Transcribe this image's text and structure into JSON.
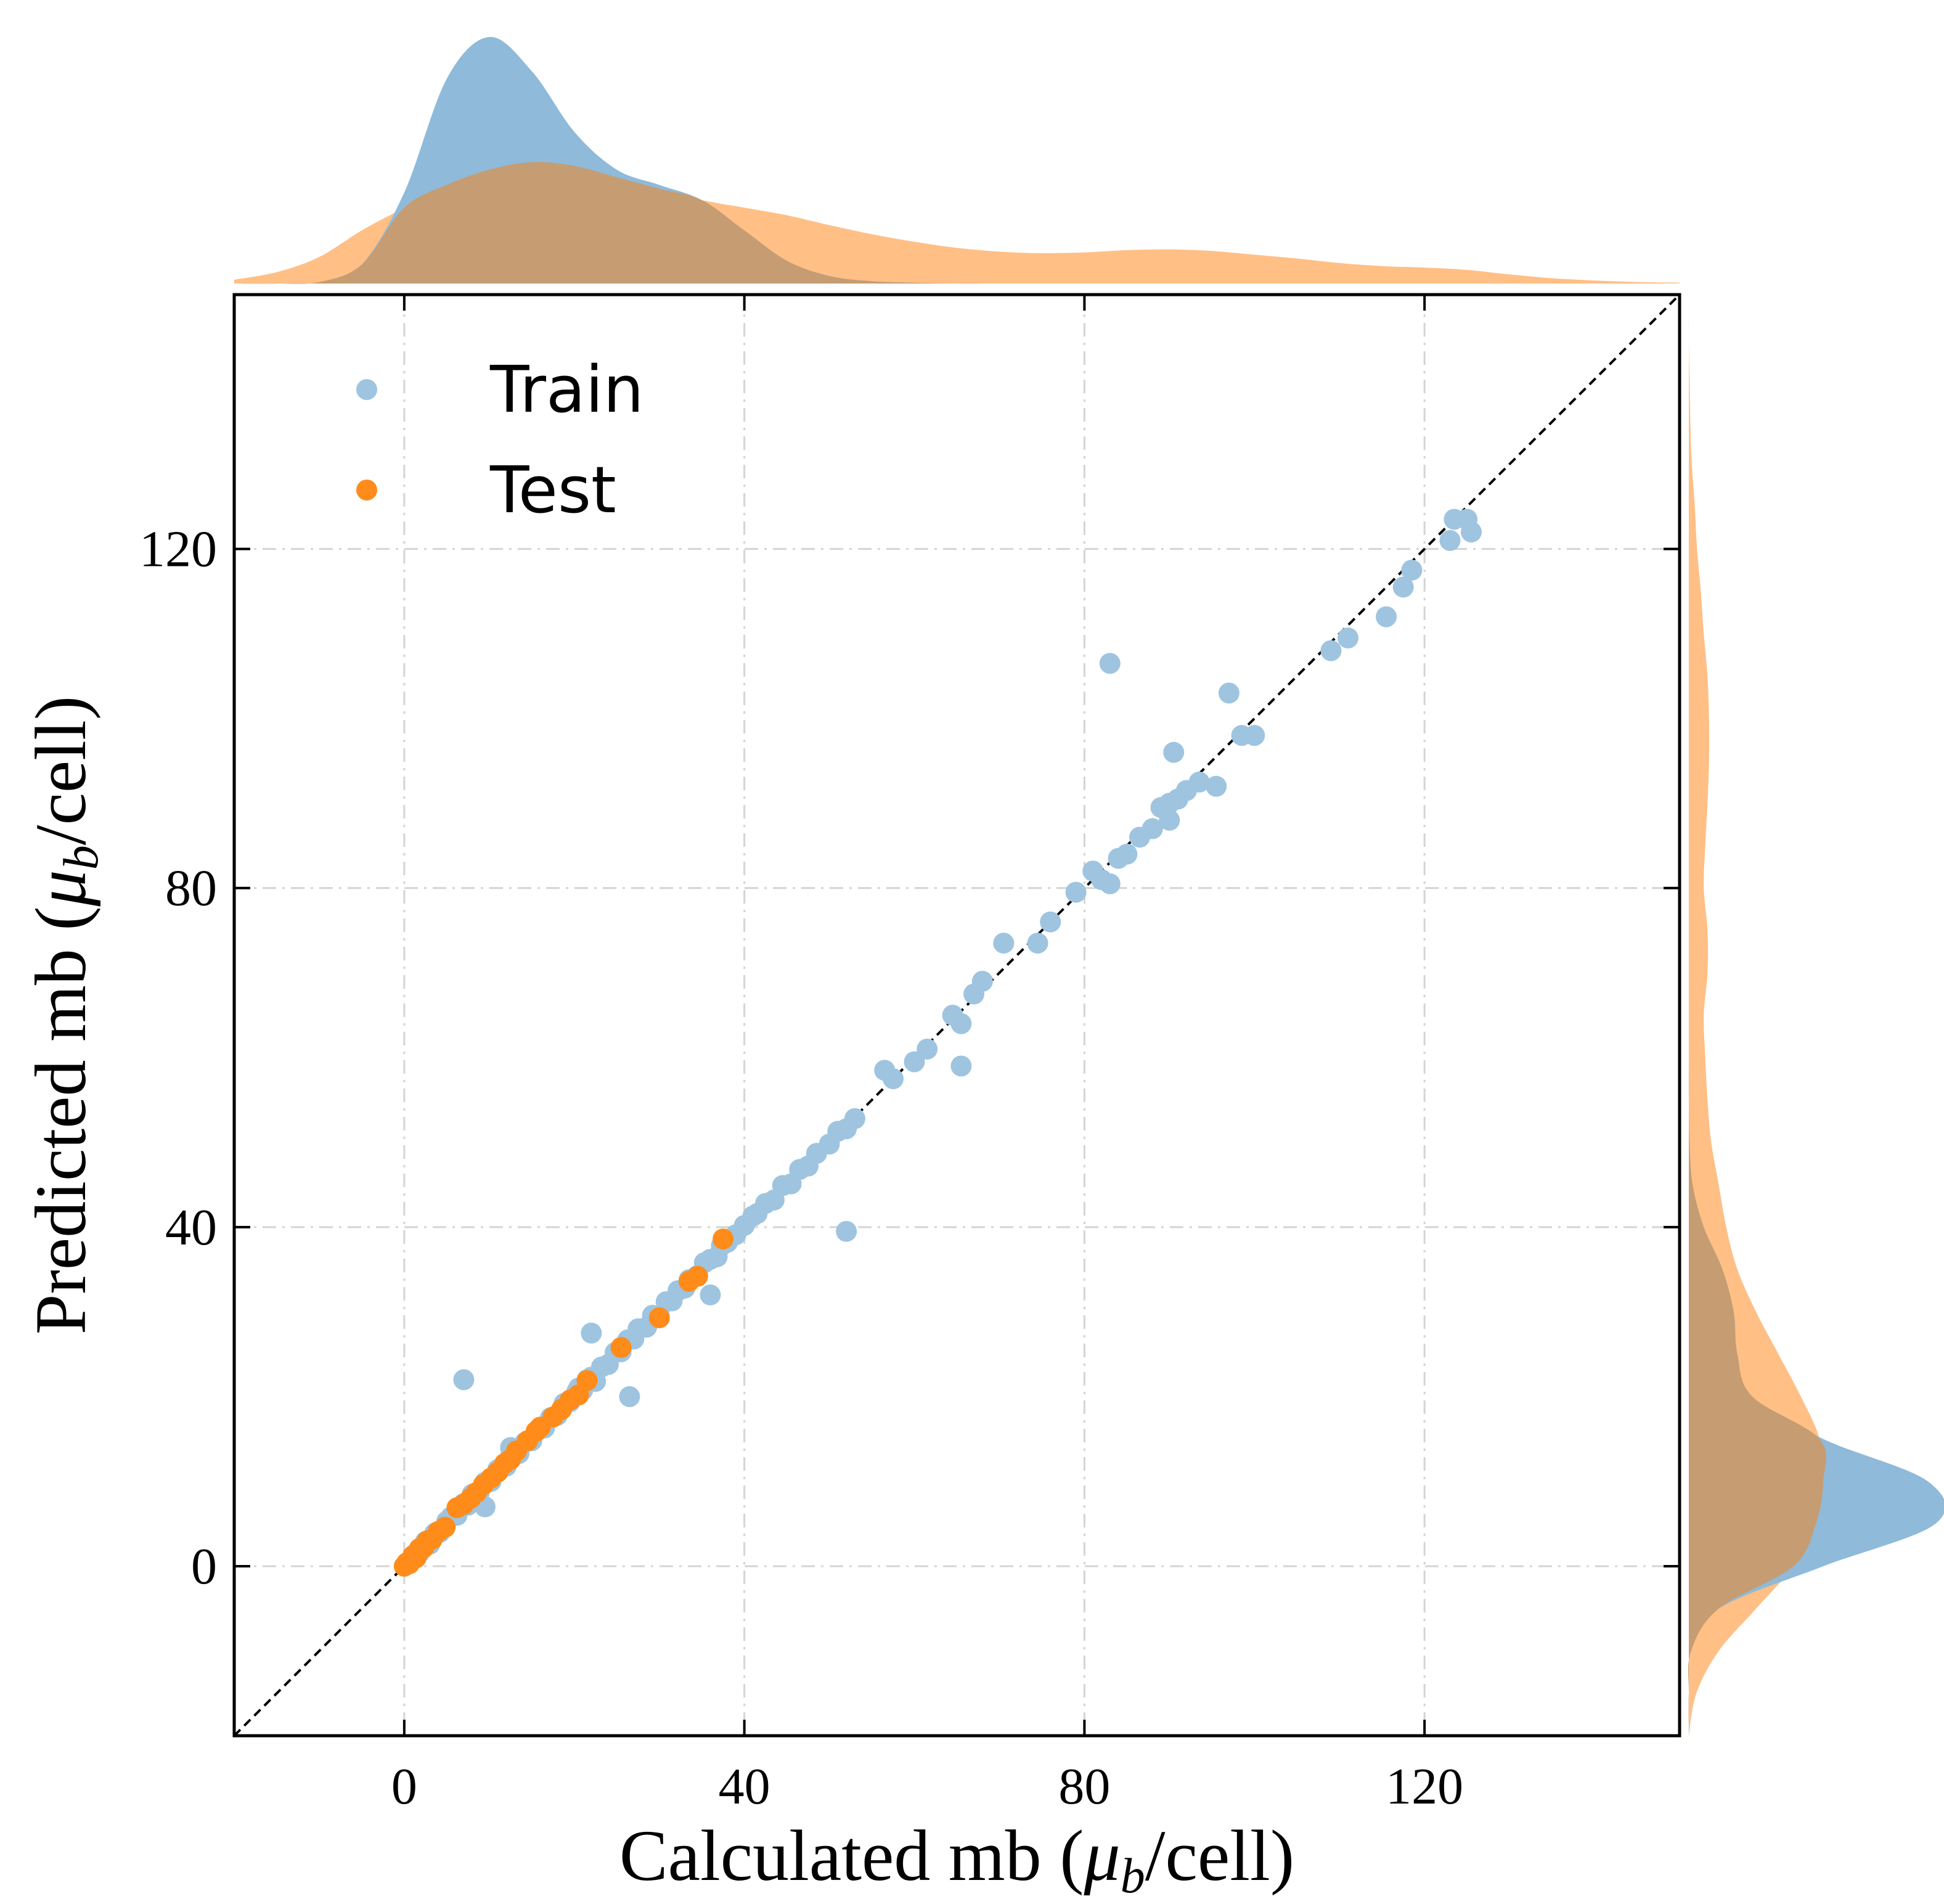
{
  "chart_data": {
    "type": "scatter",
    "xlabel": "Calculated mb (μb/cell)",
    "ylabel": "Predicted mb (μb/cell)",
    "xlabel_parts": {
      "prefix": "Calculated mb (",
      "mu": "μ",
      "sub": "b",
      "suffix": "/cell)"
    },
    "ylabel_parts": {
      "prefix": "Predicted mb (",
      "mu": "μ",
      "sub": "b",
      "suffix": "/cell)"
    },
    "xlim": [
      -20,
      150
    ],
    "ylim": [
      -20,
      150
    ],
    "xticks": [
      0,
      40,
      80,
      120
    ],
    "yticks": [
      0,
      40,
      80,
      120
    ],
    "xtick_labels": [
      "0",
      "40",
      "80",
      "120"
    ],
    "ytick_labels": [
      "0",
      "40",
      "80",
      "120"
    ],
    "grid": true,
    "legend_position": "top-left",
    "diagonal_reference_line": true,
    "marginal_distributions": "kde",
    "colors": {
      "train": "#9ec4e0",
      "test": "#ff8c1a",
      "train_kde": "#8fbad9",
      "test_kde": "#ffbf85",
      "overlap_kde": "#c69c72"
    },
    "series": [
      {
        "name": "Train",
        "x": [
          0.3,
          0.8,
          1.2,
          1.8,
          2.5,
          3.0,
          3.6,
          4.2,
          5.0,
          5.5,
          6.2,
          7.0,
          7.5,
          8.0,
          8.8,
          9.5,
          10.2,
          11.0,
          12.0,
          12.5,
          13.5,
          14.2,
          15.0,
          15.8,
          16.5,
          17.2,
          18.0,
          18.8,
          19.5,
          20.3,
          21.0,
          21.5,
          22.0,
          22.5,
          23.2,
          24.0,
          24.8,
          25.5,
          26.3,
          27.0,
          27.5,
          28.5,
          29.2,
          30.0,
          30.8,
          31.5,
          32.2,
          33.0,
          33.5,
          34.5,
          35.3,
          36.0,
          36.8,
          37.3,
          38.0,
          39.0,
          40.0,
          41.0,
          41.5,
          42.5,
          43.5,
          44.5,
          45.5,
          46.5,
          47.5,
          48.5,
          50.0,
          51.0,
          52.0,
          53.0,
          52.0,
          7.0,
          9.5,
          22.0,
          26.5,
          56.5,
          57.5,
          60.0,
          61.5,
          64.5,
          65.5,
          65.5,
          67.0,
          68.0,
          70.5,
          74.5,
          76.0,
          79.0,
          81.0,
          82.0,
          83.0,
          84.0,
          85.0,
          86.5,
          88.0,
          89.0,
          90.0,
          90.0,
          91.0,
          92.0,
          93.5,
          95.5,
          97.0,
          98.5,
          100.0,
          109.0,
          111.0,
          115.5,
          117.5,
          118.5,
          123.0,
          123.5,
          125.0,
          125.5,
          83.0,
          90.5,
          12.5,
          20.5,
          36.0
        ],
        "y": [
          0.2,
          0.7,
          1.4,
          1.6,
          2.9,
          2.6,
          3.9,
          4.0,
          5.3,
          5.8,
          6.0,
          7.4,
          7.2,
          8.5,
          8.6,
          9.9,
          10.0,
          11.4,
          11.8,
          13.0,
          13.3,
          14.6,
          14.8,
          16.2,
          16.3,
          17.5,
          17.8,
          19.2,
          19.4,
          20.6,
          20.8,
          22.0,
          22.3,
          21.8,
          23.5,
          23.8,
          25.2,
          25.3,
          26.7,
          26.8,
          28.0,
          28.2,
          29.6,
          29.5,
          31.2,
          31.3,
          32.5,
          32.8,
          33.8,
          34.3,
          35.8,
          36.2,
          36.5,
          37.8,
          38.2,
          39.1,
          40.2,
          41.3,
          41.6,
          42.8,
          43.2,
          44.9,
          45.1,
          46.8,
          47.2,
          48.7,
          49.8,
          51.3,
          51.6,
          52.8,
          39.5,
          22.0,
          7.0,
          27.5,
          20.0,
          58.5,
          57.5,
          59.5,
          61.0,
          65.0,
          64.0,
          59.0,
          67.5,
          69.0,
          73.5,
          73.5,
          76.0,
          79.5,
          82.0,
          81.0,
          80.5,
          83.5,
          84.0,
          86.0,
          87.0,
          89.5,
          88.0,
          90.0,
          90.5,
          91.5,
          92.5,
          92.0,
          103.0,
          98.0,
          98.0,
          108.0,
          109.5,
          112.0,
          115.5,
          117.5,
          121.0,
          123.5,
          123.5,
          122.0,
          106.5,
          96.0,
          14.0,
          21.0,
          32.0
        ]
      },
      {
        "name": "Test",
        "x": [
          0.0,
          0.3,
          0.6,
          1.0,
          1.4,
          1.8,
          2.3,
          2.7,
          3.3,
          4.0,
          4.8,
          6.2,
          7.0,
          7.8,
          8.5,
          9.3,
          10.2,
          11.0,
          11.8,
          12.5,
          13.2,
          14.5,
          15.5,
          16.0,
          17.5,
          18.5,
          19.5,
          20.5,
          21.5,
          25.5,
          30.0,
          33.5,
          34.5,
          37.5
        ],
        "y": [
          0.0,
          0.4,
          0.3,
          1.2,
          1.0,
          2.1,
          2.2,
          3.0,
          3.2,
          4.1,
          4.6,
          6.9,
          7.3,
          8.0,
          8.7,
          9.6,
          10.4,
          11.1,
          12.1,
          12.6,
          13.6,
          14.8,
          15.9,
          16.4,
          17.6,
          18.5,
          19.6,
          20.2,
          21.9,
          25.8,
          29.3,
          33.6,
          34.2,
          38.6
        ]
      }
    ],
    "marginal_x": {
      "grid": [
        -20,
        -15,
        -10,
        -5,
        0,
        5,
        10,
        15,
        20,
        25,
        30,
        35,
        40,
        45,
        50,
        55,
        60,
        65,
        70,
        75,
        80,
        85,
        90,
        95,
        100,
        105,
        110,
        115,
        120,
        125,
        130,
        135,
        140,
        145,
        150
      ],
      "train_density": [
        0.0,
        0.0,
        0.002,
        0.025,
        0.12,
        0.27,
        0.325,
        0.28,
        0.2,
        0.15,
        0.13,
        0.11,
        0.07,
        0.03,
        0.01,
        0.003,
        0.001,
        0.0,
        0.0,
        0.0,
        0.0,
        0.0,
        0.0,
        0.0,
        0.0,
        0.0,
        0.0,
        0.0,
        0.0,
        0.0,
        0.0,
        0.0,
        0.0,
        0.0,
        0.0
      ],
      "test_density": [
        0.005,
        0.015,
        0.035,
        0.07,
        0.1,
        0.13,
        0.15,
        0.16,
        0.155,
        0.14,
        0.125,
        0.11,
        0.1,
        0.09,
        0.077,
        0.065,
        0.055,
        0.047,
        0.042,
        0.04,
        0.041,
        0.044,
        0.045,
        0.043,
        0.038,
        0.033,
        0.027,
        0.023,
        0.021,
        0.018,
        0.012,
        0.007,
        0.004,
        0.002,
        0.001
      ]
    },
    "marginal_y": {
      "grid": [
        -20,
        -15,
        -10,
        -5,
        0,
        5,
        10,
        15,
        20,
        25,
        30,
        35,
        40,
        45,
        50,
        55,
        60,
        65,
        70,
        75,
        80,
        85,
        90,
        95,
        100,
        105,
        110,
        115,
        120,
        125,
        130,
        135,
        140,
        145,
        150
      ],
      "train_density": [
        0.0,
        0.0,
        0.003,
        0.04,
        0.18,
        0.33,
        0.32,
        0.18,
        0.085,
        0.065,
        0.06,
        0.045,
        0.02,
        0.005,
        0.001,
        0.0,
        0.0,
        0.0,
        0.0,
        0.0,
        0.0,
        0.0,
        0.0,
        0.0,
        0.0,
        0.0,
        0.0,
        0.0,
        0.0,
        0.0,
        0.0,
        0.0,
        0.0,
        0.0,
        0.0
      ],
      "test_density": [
        0.0,
        0.01,
        0.04,
        0.09,
        0.14,
        0.17,
        0.18,
        0.175,
        0.15,
        0.12,
        0.09,
        0.065,
        0.05,
        0.04,
        0.03,
        0.025,
        0.022,
        0.02,
        0.025,
        0.025,
        0.02,
        0.022,
        0.025,
        0.027,
        0.027,
        0.025,
        0.02,
        0.016,
        0.011,
        0.008,
        0.004,
        0.002,
        0.001,
        0.0,
        0.0
      ]
    }
  }
}
